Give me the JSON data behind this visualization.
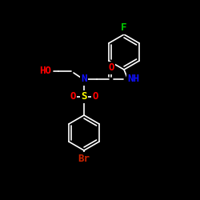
{
  "bg_color": "#000000",
  "bond_color": "#FFFFFF",
  "fig_width": 2.5,
  "fig_height": 2.5,
  "dpi": 100,
  "colors": {
    "O": "#FF0000",
    "N": "#1010FF",
    "S": "#FFFF00",
    "F": "#00CC00",
    "Br": "#CC2200",
    "C": "#FFFFFF",
    "H": "#FFFFFF"
  },
  "font_size": 9,
  "lw": 1.2
}
